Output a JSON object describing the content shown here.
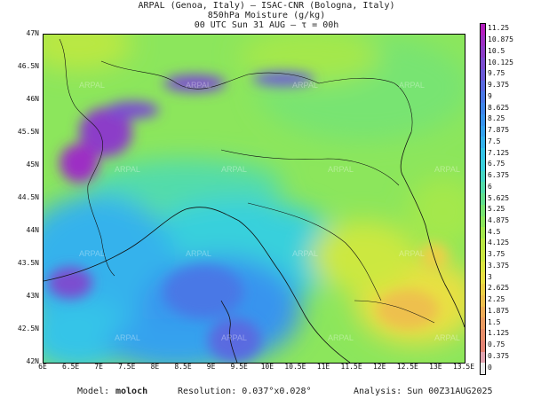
{
  "header": {
    "line1": "ARPAL (Genoa, Italy)  —  ISAC-CNR (Bologna, Italy)",
    "line2": "850hPa Moisture (g/kg)",
    "line3": "00 UTC Sun 31 AUG  —  τ = 00h"
  },
  "map": {
    "lat_labels": [
      "47N",
      "46.5N",
      "46N",
      "45.5N",
      "45N",
      "44.5N",
      "44N",
      "43.5N",
      "43N",
      "42.5N",
      "42N"
    ],
    "lon_labels": [
      "6E",
      "6.5E",
      "7E",
      "7.5E",
      "8E",
      "8.5E",
      "9E",
      "9.5E",
      "10E",
      "10.5E",
      "11E",
      "11.5E",
      "12E",
      "12.5E",
      "13E",
      "13.5E"
    ],
    "watermark": "ARPAL"
  },
  "colorbar": {
    "labels": [
      "11.25",
      "10.875",
      "10.5",
      "10.125",
      "9.75",
      "9.375",
      "9",
      "8.625",
      "8.25",
      "7.875",
      "7.5",
      "7.125",
      "6.75",
      "6.375",
      "6",
      "5.625",
      "5.25",
      "4.875",
      "4.5",
      "4.125",
      "3.75",
      "3.375",
      "3",
      "2.625",
      "2.25",
      "1.875",
      "1.5",
      "1.125",
      "0.75",
      "0.375",
      "0"
    ],
    "colors": [
      "#b41fc0",
      "#9d2fc4",
      "#8c3dc8",
      "#7b4dd0",
      "#6b5ad8",
      "#5a6ae0",
      "#4a78e6",
      "#3f86ea",
      "#3894ee",
      "#35a2ee",
      "#34b2ec",
      "#34c4e8",
      "#39d0dc",
      "#45d6c4",
      "#52dcaa",
      "#62e08e",
      "#78e472",
      "#8ce65c",
      "#a4e84c",
      "#bae843",
      "#cce841",
      "#dce641",
      "#e8e042",
      "#ecd046",
      "#eec04e",
      "#eeac58",
      "#ec9c62",
      "#e88e6a",
      "#e48474",
      "#e2a4b0",
      "#ececec"
    ]
  },
  "footer": {
    "model_label": "Model:",
    "model_name": "moloch",
    "resolution": "Resolution: 0.037°x0.028°",
    "analysis": "Analysis: Sun 00Z31AUG2025"
  }
}
